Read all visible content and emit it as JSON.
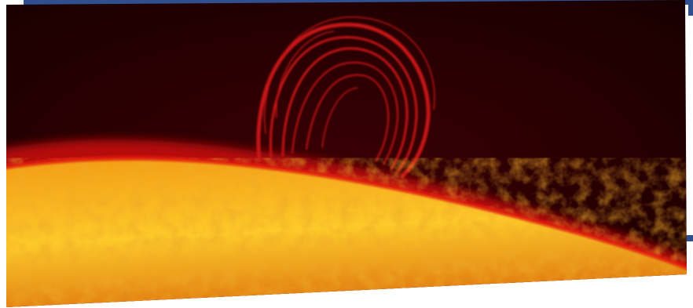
{
  "scene": {
    "subject": "solar-prominence",
    "colors": {
      "background": "#ffffff",
      "frame_accent": "#2f4f8f",
      "space_dark": "#180000",
      "space_mid": "#3a0004",
      "limb_glow": "#c40d0d",
      "limb_edge": "#e01a10",
      "surface_orange": "#f39a12",
      "surface_yellow": "#fdca2a",
      "surface_deep": "#e07a10",
      "loop_red": "#c81418"
    }
  }
}
